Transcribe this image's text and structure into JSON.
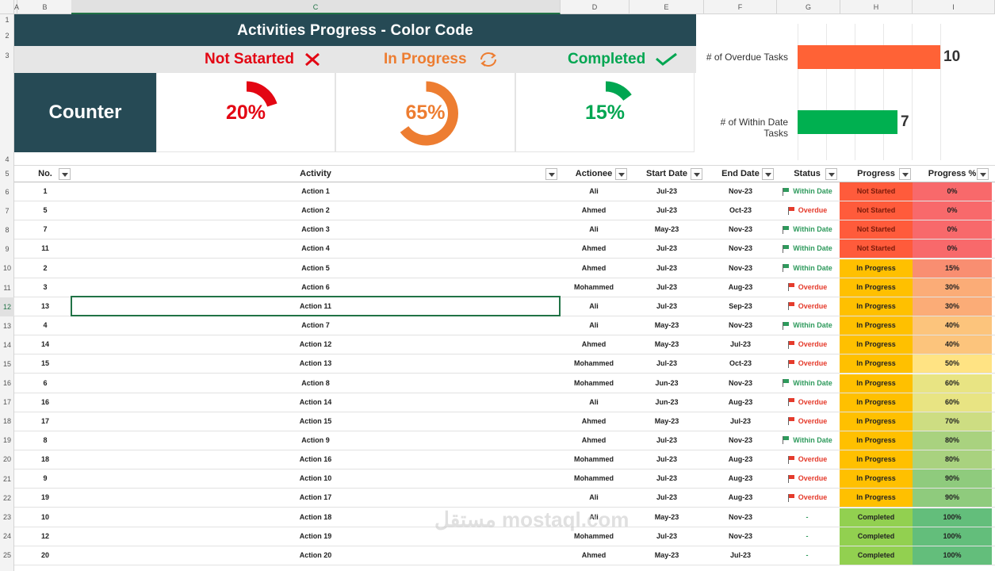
{
  "sheet": {
    "columns": [
      "A",
      "B",
      "C",
      "D",
      "E",
      "F",
      "G",
      "H",
      "I"
    ],
    "selected_column": "C",
    "rows": [
      "1",
      "2",
      "3",
      "4",
      "5",
      "6",
      "7",
      "8",
      "9",
      "10",
      "11",
      "12",
      "13",
      "14",
      "15",
      "16",
      "17",
      "18",
      "19",
      "20",
      "21",
      "22",
      "23",
      "24",
      "25"
    ],
    "selected_row": "12"
  },
  "dashboard": {
    "title": "Activities Progress - Color Code",
    "legend": {
      "not_started": "Not Satarted",
      "in_progress": "In Progress",
      "completed": "Completed"
    },
    "counter_label": "Counter",
    "gauges": [
      {
        "label": "20%",
        "value": 0.2,
        "color": "#e30613"
      },
      {
        "label": "65%",
        "value": 0.65,
        "color": "#ed7d31"
      },
      {
        "label": "15%",
        "value": 0.15,
        "color": "#00a651"
      }
    ],
    "colors": {
      "header_bg": "#264a55",
      "not_started": "#e30613",
      "in_progress": "#ed7d31",
      "completed": "#00a651"
    }
  },
  "chart_data": {
    "type": "bar",
    "categories": [
      "# of Overdue Tasks",
      "# of Within Date Tasks"
    ],
    "values": [
      10,
      7
    ],
    "colors": [
      "#ff6236",
      "#00b050"
    ],
    "orientation": "horizontal",
    "grid": true
  },
  "table": {
    "headers": [
      "No.",
      "Activity",
      "Actionee",
      "Start Date",
      "End Date",
      "Status",
      "Progress",
      "Progress %"
    ],
    "rows": [
      {
        "no": "1",
        "activity": "Action 1",
        "actionee": "Ali",
        "start": "Jul-23",
        "end": "Nov-23",
        "status": "Within Date",
        "progress": "Not Started",
        "pct": "0%"
      },
      {
        "no": "5",
        "activity": "Action 2",
        "actionee": "Ahmed",
        "start": "Jul-23",
        "end": "Oct-23",
        "status": "Overdue",
        "progress": "Not Started",
        "pct": "0%"
      },
      {
        "no": "7",
        "activity": "Action 3",
        "actionee": "Ali",
        "start": "May-23",
        "end": "Nov-23",
        "status": "Within Date",
        "progress": "Not Started",
        "pct": "0%"
      },
      {
        "no": "11",
        "activity": "Action 4",
        "actionee": "Ahmed",
        "start": "Jul-23",
        "end": "Nov-23",
        "status": "Within Date",
        "progress": "Not Started",
        "pct": "0%"
      },
      {
        "no": "2",
        "activity": "Action 5",
        "actionee": "Ahmed",
        "start": "Jul-23",
        "end": "Nov-23",
        "status": "Within Date",
        "progress": "In Progress",
        "pct": "15%"
      },
      {
        "no": "3",
        "activity": "Action 6",
        "actionee": "Mohammed",
        "start": "Jul-23",
        "end": "Aug-23",
        "status": "Overdue",
        "progress": "In Progress",
        "pct": "30%"
      },
      {
        "no": "13",
        "activity": "Action 11",
        "actionee": "Ali",
        "start": "Jul-23",
        "end": "Sep-23",
        "status": "Overdue",
        "progress": "In Progress",
        "pct": "30%"
      },
      {
        "no": "4",
        "activity": "Action 7",
        "actionee": "Ali",
        "start": "May-23",
        "end": "Nov-23",
        "status": "Within Date",
        "progress": "In Progress",
        "pct": "40%"
      },
      {
        "no": "14",
        "activity": "Action 12",
        "actionee": "Ahmed",
        "start": "May-23",
        "end": "Jul-23",
        "status": "Overdue",
        "progress": "In Progress",
        "pct": "40%"
      },
      {
        "no": "15",
        "activity": "Action 13",
        "actionee": "Mohammed",
        "start": "Jul-23",
        "end": "Oct-23",
        "status": "Overdue",
        "progress": "In Progress",
        "pct": "50%"
      },
      {
        "no": "6",
        "activity": "Action 8",
        "actionee": "Mohammed",
        "start": "Jun-23",
        "end": "Nov-23",
        "status": "Within Date",
        "progress": "In Progress",
        "pct": "60%"
      },
      {
        "no": "16",
        "activity": "Action 14",
        "actionee": "Ali",
        "start": "Jun-23",
        "end": "Aug-23",
        "status": "Overdue",
        "progress": "In Progress",
        "pct": "60%"
      },
      {
        "no": "17",
        "activity": "Action 15",
        "actionee": "Ahmed",
        "start": "May-23",
        "end": "Jul-23",
        "status": "Overdue",
        "progress": "In Progress",
        "pct": "70%"
      },
      {
        "no": "8",
        "activity": "Action 9",
        "actionee": "Ahmed",
        "start": "Jul-23",
        "end": "Nov-23",
        "status": "Within Date",
        "progress": "In Progress",
        "pct": "80%"
      },
      {
        "no": "18",
        "activity": "Action 16",
        "actionee": "Mohammed",
        "start": "Jul-23",
        "end": "Aug-23",
        "status": "Overdue",
        "progress": "In Progress",
        "pct": "80%"
      },
      {
        "no": "9",
        "activity": "Action 10",
        "actionee": "Mohammed",
        "start": "Jul-23",
        "end": "Aug-23",
        "status": "Overdue",
        "progress": "In Progress",
        "pct": "90%"
      },
      {
        "no": "19",
        "activity": "Action 17",
        "actionee": "Ali",
        "start": "Jul-23",
        "end": "Aug-23",
        "status": "Overdue",
        "progress": "In Progress",
        "pct": "90%"
      },
      {
        "no": "10",
        "activity": "Action 18",
        "actionee": "Ali",
        "start": "May-23",
        "end": "Nov-23",
        "status": "-",
        "progress": "Completed",
        "pct": "100%"
      },
      {
        "no": "12",
        "activity": "Action 19",
        "actionee": "Mohammed",
        "start": "Jul-23",
        "end": "Nov-23",
        "status": "-",
        "progress": "Completed",
        "pct": "100%"
      },
      {
        "no": "20",
        "activity": "Action 20",
        "actionee": "Ahmed",
        "start": "May-23",
        "end": "Jul-23",
        "status": "-",
        "progress": "Completed",
        "pct": "100%"
      }
    ]
  },
  "watermark": "مستقل mostaql.com"
}
